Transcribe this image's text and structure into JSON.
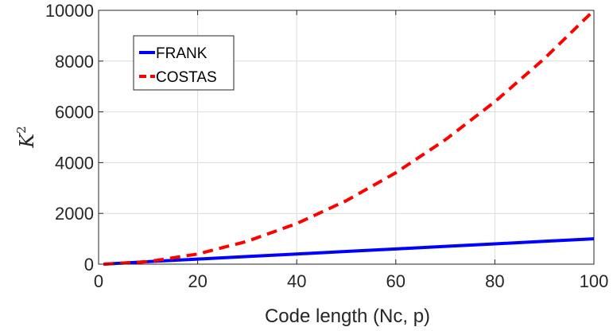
{
  "chart_data": {
    "type": "line",
    "title": "",
    "xlabel": "Code length (Nc, p)",
    "ylabel": "K",
    "ylabel_superscript": "2",
    "xlim": [
      0,
      100
    ],
    "ylim": [
      0,
      10000
    ],
    "xticks": [
      0,
      20,
      40,
      60,
      80,
      100
    ],
    "yticks": [
      0,
      2000,
      4000,
      6000,
      8000,
      10000
    ],
    "grid": true,
    "legend_position": "top-left",
    "series": [
      {
        "name": "FRANK",
        "color": "#0000ff",
        "style": "solid",
        "x": [
          1,
          10,
          20,
          30,
          40,
          50,
          60,
          70,
          80,
          90,
          100
        ],
        "y": [
          1,
          100,
          200,
          300,
          400,
          500,
          600,
          700,
          800,
          900,
          1000
        ]
      },
      {
        "name": "COSTAS",
        "color": "#ff0000",
        "style": "dashed",
        "x": [
          1,
          10,
          20,
          30,
          40,
          50,
          60,
          70,
          80,
          90,
          100
        ],
        "y": [
          1,
          100,
          400,
          900,
          1600,
          2500,
          3600,
          4900,
          6400,
          8100,
          10000
        ]
      }
    ]
  }
}
